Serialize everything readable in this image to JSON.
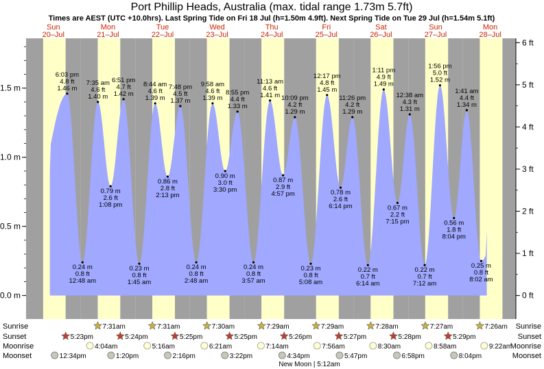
{
  "header": {
    "title": "Port Phillip Heads, Australia (max. tidal range 1.73m 5.7ft)",
    "subtitle": "Times are AEST (UTC +10.0hrs). Last Spring Tide on Fri 18 Jul (h=1.50m 4.9ft). Next Spring Tide on Tue 29 Jul (h=1.54m 5.1ft)"
  },
  "days": [
    {
      "name": "Sun",
      "date": "20–Jul"
    },
    {
      "name": "Mon",
      "date": "21–Jul"
    },
    {
      "name": "Tue",
      "date": "22–Jul"
    },
    {
      "name": "Wed",
      "date": "23–Jul"
    },
    {
      "name": "Thu",
      "date": "24–Jul"
    },
    {
      "name": "Fri",
      "date": "25–Jul"
    },
    {
      "name": "Sat",
      "date": "26–Jul"
    },
    {
      "name": "Sun",
      "date": "27–Jul"
    },
    {
      "name": "Mon",
      "date": "28–Jul"
    }
  ],
  "colors": {
    "day_band": "#ffffc8",
    "night_band": "#a0a0a0",
    "tide_fill": "#a0a8ff",
    "day_name": "#cc2200",
    "sun_star": "#c8b43c",
    "sunset_star": "#c83c28"
  },
  "chart_data": {
    "type": "area",
    "title": "Port Phillip Heads, Australia (max. tidal range 1.73m 5.7ft)",
    "y_left_unit": "m",
    "y_right_unit": "ft",
    "y_left_ticks": [
      "1.5 m",
      "1.0 m",
      "0.5 m",
      "0.0 m"
    ],
    "y_left_tick_values": [
      1.5,
      1.0,
      0.5,
      0.0
    ],
    "y_right_ticks": [
      "6 ft",
      "5 ft",
      "4 ft",
      "3 ft",
      "2 ft",
      "1 ft",
      "0 ft"
    ],
    "y_right_tick_values": [
      6,
      5,
      4,
      3,
      2,
      1,
      0
    ],
    "ylim": [
      -0.17,
      1.86
    ],
    "x_start": "20-Jul 00:00",
    "tides": [
      {
        "day": 0,
        "time": "6:03 pm",
        "m": 1.46,
        "m_label": "1.46 m",
        "ft": "4.8 ft",
        "type": "high"
      },
      {
        "day": 1,
        "time": "12:48 am",
        "m": 0.24,
        "m_label": "0.24 m",
        "ft": "0.8 ft",
        "type": "low"
      },
      {
        "day": 1,
        "time": "7:35 am",
        "m": 1.4,
        "m_label": "1.40 m",
        "ft": "4.6 ft",
        "type": "high"
      },
      {
        "day": 1,
        "time": "1:08 pm",
        "m": 0.79,
        "m_label": "0.79 m",
        "ft": "2.6 ft",
        "type": "low"
      },
      {
        "day": 1,
        "time": "6:51 pm",
        "m": 1.42,
        "m_label": "1.42 m",
        "ft": "4.7 ft",
        "type": "high"
      },
      {
        "day": 2,
        "time": "1:45 am",
        "m": 0.23,
        "m_label": "0.23 m",
        "ft": "0.8 ft",
        "type": "low"
      },
      {
        "day": 2,
        "time": "8:44 am",
        "m": 1.39,
        "m_label": "1.39 m",
        "ft": "4.6 ft",
        "type": "high"
      },
      {
        "day": 2,
        "time": "2:13 pm",
        "m": 0.86,
        "m_label": "0.86 m",
        "ft": "2.8 ft",
        "type": "low"
      },
      {
        "day": 2,
        "time": "7:48 pm",
        "m": 1.37,
        "m_label": "1.37 m",
        "ft": "4.5 ft",
        "type": "high"
      },
      {
        "day": 3,
        "time": "2:48 am",
        "m": 0.24,
        "m_label": "0.24 m",
        "ft": "0.8 ft",
        "type": "low"
      },
      {
        "day": 3,
        "time": "9:58 am",
        "m": 1.39,
        "m_label": "1.39 m",
        "ft": "4.6 ft",
        "type": "high"
      },
      {
        "day": 3,
        "time": "3:30 pm",
        "m": 0.9,
        "m_label": "0.90 m",
        "ft": "3.0 ft",
        "type": "low"
      },
      {
        "day": 3,
        "time": "8:55 pm",
        "m": 1.33,
        "m_label": "1.33 m",
        "ft": "4.4 ft",
        "type": "high"
      },
      {
        "day": 4,
        "time": "3:57 am",
        "m": 0.24,
        "m_label": "0.24 m",
        "ft": "0.8 ft",
        "type": "low"
      },
      {
        "day": 4,
        "time": "11:13 am",
        "m": 1.41,
        "m_label": "1.41 m",
        "ft": "4.6 ft",
        "type": "high"
      },
      {
        "day": 4,
        "time": "4:57 pm",
        "m": 0.87,
        "m_label": "0.87 m",
        "ft": "2.9 ft",
        "type": "low"
      },
      {
        "day": 4,
        "time": "10:09 pm",
        "m": 1.29,
        "m_label": "1.29 m",
        "ft": "4.2 ft",
        "type": "high"
      },
      {
        "day": 5,
        "time": "5:08 am",
        "m": 0.23,
        "m_label": "0.23 m",
        "ft": "0.8 ft",
        "type": "low"
      },
      {
        "day": 5,
        "time": "12:17 pm",
        "m": 1.45,
        "m_label": "1.45 m",
        "ft": "4.8 ft",
        "type": "high"
      },
      {
        "day": 5,
        "time": "6:14 pm",
        "m": 0.78,
        "m_label": "0.78 m",
        "ft": "2.6 ft",
        "type": "low"
      },
      {
        "day": 5,
        "time": "11:26 pm",
        "m": 1.29,
        "m_label": "1.29 m",
        "ft": "4.2 ft",
        "type": "high"
      },
      {
        "day": 6,
        "time": "6:14 am",
        "m": 0.22,
        "m_label": "0.22 m",
        "ft": "0.7 ft",
        "type": "low"
      },
      {
        "day": 6,
        "time": "1:11 pm",
        "m": 1.49,
        "m_label": "1.49 m",
        "ft": "4.9 ft",
        "type": "high"
      },
      {
        "day": 6,
        "time": "7:15 pm",
        "m": 0.67,
        "m_label": "0.67 m",
        "ft": "2.2 ft",
        "type": "low"
      },
      {
        "day": 7,
        "time": "12:38 am",
        "m": 1.31,
        "m_label": "1.31 m",
        "ft": "4.3 ft",
        "type": "high"
      },
      {
        "day": 7,
        "time": "7:12 am",
        "m": 0.22,
        "m_label": "0.22 m",
        "ft": "0.7 ft",
        "type": "low"
      },
      {
        "day": 7,
        "time": "1:56 pm",
        "m": 1.52,
        "m_label": "1.52 m",
        "ft": "5.0 ft",
        "type": "high"
      },
      {
        "day": 7,
        "time": "8:04 pm",
        "m": 0.56,
        "m_label": "0.56 m",
        "ft": "1.8 ft",
        "type": "low"
      },
      {
        "day": 8,
        "time": "1:41 am",
        "m": 1.34,
        "m_label": "1.34 m",
        "ft": "4.4 ft",
        "type": "high"
      },
      {
        "day": 8,
        "time": "8:02 am",
        "m": 0.25,
        "m_label": "0.25 m",
        "ft": "0.8 ft",
        "type": "low"
      }
    ],
    "sunrise": [
      {
        "day": 1,
        "time": "7:31am"
      },
      {
        "day": 2,
        "time": "7:31am"
      },
      {
        "day": 3,
        "time": "7:30am"
      },
      {
        "day": 4,
        "time": "7:29am"
      },
      {
        "day": 5,
        "time": "7:29am"
      },
      {
        "day": 6,
        "time": "7:28am"
      },
      {
        "day": 7,
        "time": "7:27am"
      },
      {
        "day": 8,
        "time": "7:26am"
      }
    ],
    "sunset": [
      {
        "day": 0,
        "time": "5:23pm"
      },
      {
        "day": 1,
        "time": "5:24pm"
      },
      {
        "day": 2,
        "time": "5:25pm"
      },
      {
        "day": 3,
        "time": "5:25pm"
      },
      {
        "day": 4,
        "time": "5:26pm"
      },
      {
        "day": 5,
        "time": "5:27pm"
      },
      {
        "day": 6,
        "time": "5:28pm"
      },
      {
        "day": 7,
        "time": "5:29pm"
      }
    ],
    "moonrise": [
      {
        "day": 1,
        "time": "4:04am"
      },
      {
        "day": 2,
        "time": "5:16am"
      },
      {
        "day": 3,
        "time": "6:21am"
      },
      {
        "day": 4,
        "time": "7:14am"
      },
      {
        "day": 5,
        "time": "7:56am"
      },
      {
        "day": 6,
        "time": "8:30am"
      },
      {
        "day": 7,
        "time": "8:58am"
      },
      {
        "day": 8,
        "time": "9:22am"
      }
    ],
    "moonset": [
      {
        "day": 0,
        "time": "12:34pm"
      },
      {
        "day": 1,
        "time": "1:20pm"
      },
      {
        "day": 2,
        "time": "2:16pm"
      },
      {
        "day": 3,
        "time": "3:22pm"
      },
      {
        "day": 4,
        "time": "4:34pm"
      },
      {
        "day": 5,
        "time": "5:47pm"
      },
      {
        "day": 6,
        "time": "6:58pm"
      },
      {
        "day": 7,
        "time": "8:04pm"
      }
    ],
    "new_moon": {
      "day": 4,
      "time": "5:12am",
      "label": "New Moon | 5:12am"
    }
  },
  "astro_labels": {
    "sunrise": "Sunrise",
    "sunset": "Sunset",
    "moonrise": "Moonrise",
    "moonset": "Moonset"
  }
}
